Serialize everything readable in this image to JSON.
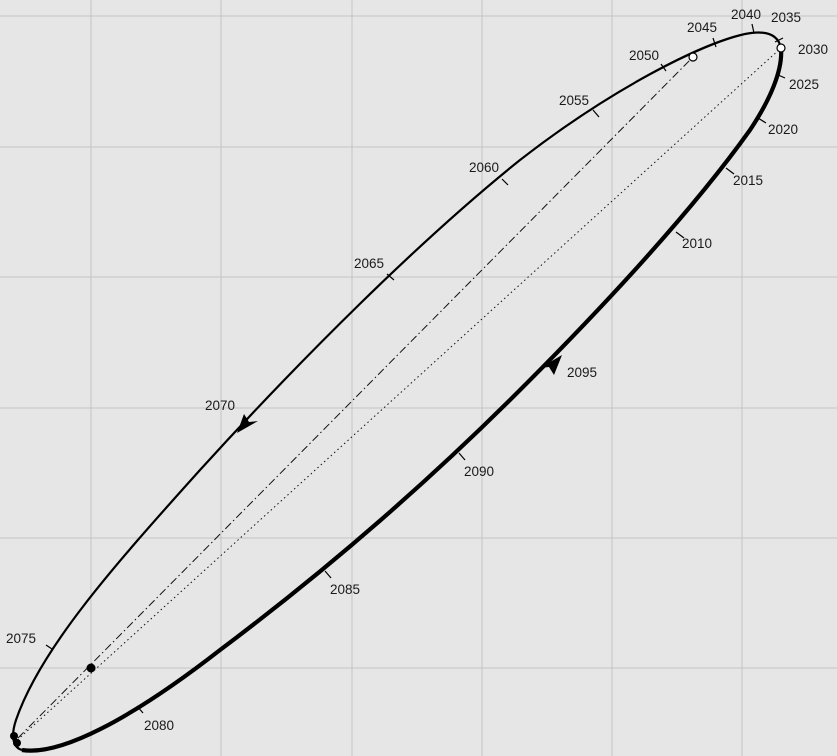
{
  "figure": {
    "year_labels": [
      {
        "id": "2010",
        "text": "2010"
      },
      {
        "id": "2015",
        "text": "2015"
      },
      {
        "id": "2020",
        "text": "2020"
      },
      {
        "id": "2025",
        "text": "2025"
      },
      {
        "id": "2030",
        "text": "2030"
      },
      {
        "id": "2035",
        "text": "2035"
      },
      {
        "id": "2040",
        "text": "2040"
      },
      {
        "id": "2045",
        "text": "2045"
      },
      {
        "id": "2050",
        "text": "2050"
      },
      {
        "id": "2055",
        "text": "2055"
      },
      {
        "id": "2060",
        "text": "2060"
      },
      {
        "id": "2065",
        "text": "2065"
      },
      {
        "id": "2070",
        "text": "2070"
      },
      {
        "id": "2075",
        "text": "2075"
      },
      {
        "id": "2080",
        "text": "2080"
      },
      {
        "id": "2085",
        "text": "2085"
      },
      {
        "id": "2090",
        "text": "2090"
      },
      {
        "id": "2095",
        "text": "2095"
      }
    ],
    "colors": {
      "background": "#e6e6e6",
      "grid": "#c4c4c4",
      "curve": "#000000"
    }
  }
}
